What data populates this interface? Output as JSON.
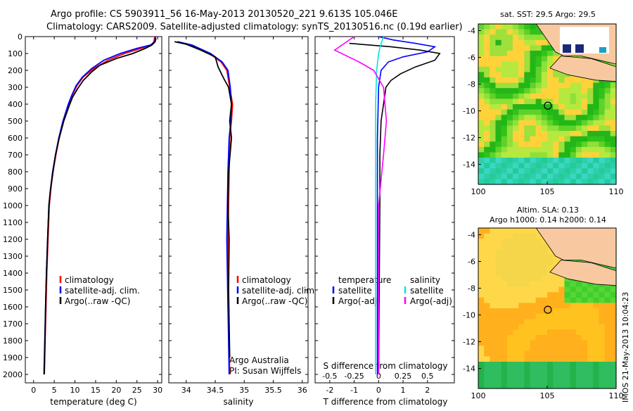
{
  "header": {
    "line1": "Argo profile: CS 5903911_56 16-May-2013 20130520_221 9.613S 105.046E",
    "line2": "Climatology: CARS2009. Satellite-adjusted climatology: synTS_20130516.nc (0.19d earlier)"
  },
  "side_stamp": "IMOS 21-May-2013 10:04:23",
  "colors": {
    "climatology": "#ff0000",
    "satellite": "#0000ff",
    "argo": "#000000",
    "sal_sat": "#00e5e5",
    "sal_argo": "#ff00ff",
    "land": "#f8c9a0"
  },
  "chart_data": [
    {
      "type": "line",
      "xlabel": "temperature (deg C)",
      "ylabel": "",
      "xlim": [
        -2,
        31
      ],
      "ylim": [
        2050,
        0
      ],
      "xticks": [
        0,
        5,
        10,
        15,
        20,
        25,
        30
      ],
      "yticks": [
        0,
        100,
        200,
        300,
        400,
        500,
        600,
        700,
        800,
        900,
        1000,
        1100,
        1200,
        1300,
        1400,
        1500,
        1600,
        1700,
        1800,
        1900,
        2000
      ],
      "legend": [
        {
          "label": "climatology",
          "color": "#ff0000"
        },
        {
          "label": "satellite-adj. clim.",
          "color": "#0000ff"
        },
        {
          "label": "Argo(..raw -QC)",
          "color": "#000000"
        }
      ],
      "series": [
        {
          "name": "climatology",
          "color": "#ff0000",
          "x": [
            29.3,
            29.1,
            28.5,
            26,
            22,
            18,
            14.5,
            12,
            10.5,
            9.3,
            8.5,
            7.2,
            6.2,
            5.4,
            4.7,
            4.2,
            3.8,
            3.5,
            3.2,
            3.0,
            2.8,
            2.6
          ],
          "y": [
            0,
            30,
            50,
            70,
            100,
            140,
            190,
            240,
            290,
            350,
            400,
            500,
            600,
            700,
            800,
            900,
            1000,
            1200,
            1400,
            1600,
            1800,
            2000
          ]
        },
        {
          "name": "satellite-adj. clim.",
          "color": "#0000ff",
          "x": [
            29.5,
            29.3,
            28.3,
            25,
            21,
            17,
            14,
            11.8,
            10.3,
            9.2,
            8.4,
            7.1,
            6.1,
            5.3,
            4.6,
            4.1,
            3.7,
            3.4,
            3.1,
            2.9,
            2.7,
            2.5
          ],
          "y": [
            0,
            30,
            50,
            70,
            100,
            140,
            190,
            240,
            290,
            350,
            400,
            500,
            600,
            700,
            800,
            900,
            1000,
            1200,
            1400,
            1600,
            1800,
            2000
          ]
        },
        {
          "name": "Argo(..raw -QC)",
          "color": "#000000",
          "x": [
            29.6,
            29.4,
            28.6,
            27,
            24,
            20,
            16,
            14,
            12,
            10.6,
            9.4,
            8.6,
            7.3,
            6.2,
            5.3,
            4.7,
            4.1,
            3.7,
            3.4,
            3.1,
            2.9,
            2.6
          ],
          "y": [
            10,
            30,
            50,
            70,
            100,
            130,
            170,
            210,
            260,
            310,
            360,
            410,
            500,
            600,
            700,
            800,
            900,
            1000,
            1200,
            1400,
            1600,
            2000
          ]
        }
      ]
    },
    {
      "type": "line",
      "xlabel": "salinity",
      "xlim": [
        33.7,
        36.1
      ],
      "ylim": [
        2050,
        0
      ],
      "xticks": [
        34,
        34.5,
        35,
        35.5,
        36
      ],
      "legend": [
        {
          "label": "climatology",
          "color": "#ff0000"
        },
        {
          "label": "satellite-adj. clim.",
          "color": "#0000ff"
        },
        {
          "label": "Argo(..raw -QC)",
          "color": "#000000"
        }
      ],
      "annotations": [
        "Argo Australia",
        "PI: Susan Wijffels"
      ],
      "series": [
        {
          "name": "climatology",
          "color": "#ff0000",
          "x": [
            33.85,
            34.05,
            34.4,
            34.6,
            34.7,
            34.75,
            34.8,
            34.78,
            34.75,
            34.74,
            34.73,
            34.72,
            34.72,
            34.73,
            34.74,
            34.75
          ],
          "y": [
            30,
            50,
            100,
            150,
            200,
            300,
            400,
            500,
            600,
            800,
            1000,
            1200,
            1400,
            1600,
            1800,
            2000
          ]
        },
        {
          "name": "satellite-adj. clim.",
          "color": "#0000ff",
          "x": [
            33.85,
            34.1,
            34.42,
            34.62,
            34.72,
            34.76,
            34.78,
            34.77,
            34.74,
            34.72,
            34.71,
            34.7,
            34.71,
            34.72,
            34.73,
            34.74
          ],
          "y": [
            30,
            50,
            100,
            150,
            200,
            300,
            400,
            500,
            600,
            800,
            1000,
            1200,
            1400,
            1600,
            1800,
            2000
          ]
        },
        {
          "name": "Argo(..raw -QC)",
          "color": "#000000",
          "x": [
            33.8,
            34.0,
            34.25,
            34.5,
            34.55,
            34.65,
            34.73,
            34.78,
            34.75,
            34.78,
            34.73,
            34.72,
            34.74,
            34.73,
            34.75
          ],
          "y": [
            30,
            45,
            80,
            120,
            180,
            250,
            300,
            400,
            500,
            600,
            800,
            1000,
            1200,
            1500,
            1900
          ]
        }
      ]
    },
    {
      "type": "line",
      "xlabel": "T difference from climatology",
      "x2label": "S difference from climatology",
      "xlim": [
        -2.6,
        3.1
      ],
      "x2lim": [
        -0.65,
        0.775
      ],
      "ylim": [
        2050,
        0
      ],
      "xticks": [
        -2,
        -1,
        0,
        1,
        2
      ],
      "x2ticks": [
        -0.5,
        -0.25,
        0,
        0.25,
        0.5
      ],
      "legend_temperature_title": "temperature",
      "legend_salinity_title": "salinity",
      "legend": [
        {
          "label": "satellite",
          "color": "#0000ff"
        },
        {
          "label": "Argo(-adj)",
          "color": "#000000"
        },
        {
          "label": "satellite",
          "color": "#00e5e5"
        },
        {
          "label": "Argo(-adj)",
          "color": "#ff00ff"
        }
      ],
      "series": [
        {
          "name": "temperature satellite",
          "color": "#0000ff",
          "axis": "T",
          "x": [
            0,
            0.6,
            1.5,
            2.3,
            2.0,
            1.0,
            0.4,
            0.1,
            0,
            -0.05,
            -0.05,
            -0.05
          ],
          "y": [
            0,
            20,
            40,
            60,
            90,
            120,
            150,
            200,
            300,
            600,
            1200,
            2000
          ]
        },
        {
          "name": "temperature Argo(-adj)",
          "color": "#000000",
          "axis": "T",
          "x": [
            -1.2,
            0.5,
            1.7,
            2.5,
            2.3,
            1.5,
            0.9,
            0.5,
            0.3,
            0.2,
            0.1,
            0.05,
            0.05,
            0
          ],
          "y": [
            40,
            60,
            80,
            100,
            140,
            180,
            220,
            260,
            300,
            400,
            500,
            700,
            1000,
            2000
          ]
        },
        {
          "name": "salinity satellite",
          "color": "#00e5e5",
          "axis": "S",
          "x": [
            0.05,
            0.02,
            0,
            -0.02,
            -0.03,
            -0.03,
            -0.03,
            -0.03
          ],
          "y": [
            0,
            50,
            100,
            200,
            400,
            800,
            1400,
            2000
          ]
        },
        {
          "name": "salinity Argo(-adj)",
          "color": "#ff00ff",
          "axis": "S",
          "x": [
            -0.25,
            -0.45,
            -0.2,
            -0.05,
            0.05,
            0.08,
            0.05,
            0,
            0,
            0
          ],
          "y": [
            0,
            80,
            150,
            200,
            300,
            500,
            700,
            1000,
            1500,
            2000
          ]
        }
      ]
    },
    {
      "type": "heatmap",
      "title": "sat. SST: 29.5  Argo: 29.5",
      "xlim": [
        100,
        110
      ],
      "ylim": [
        -15.5,
        -3.5
      ],
      "xticks": [
        100,
        105,
        110
      ],
      "yticks": [
        -4,
        -6,
        -8,
        -10,
        -12,
        -14
      ],
      "argo_position": {
        "lon": 105.046,
        "lat": -9.613
      }
    },
    {
      "type": "heatmap",
      "title": "Altim. SLA: 0.13",
      "subtitle": "Argo h1000: 0.14 h2000: 0.14",
      "xlim": [
        100,
        110
      ],
      "ylim": [
        -15.5,
        -3.5
      ],
      "xticks": [
        100,
        105,
        110
      ],
      "yticks": [
        -4,
        -6,
        -8,
        -10,
        -12,
        -14
      ],
      "argo_position": {
        "lon": 105.046,
        "lat": -9.613
      }
    }
  ]
}
